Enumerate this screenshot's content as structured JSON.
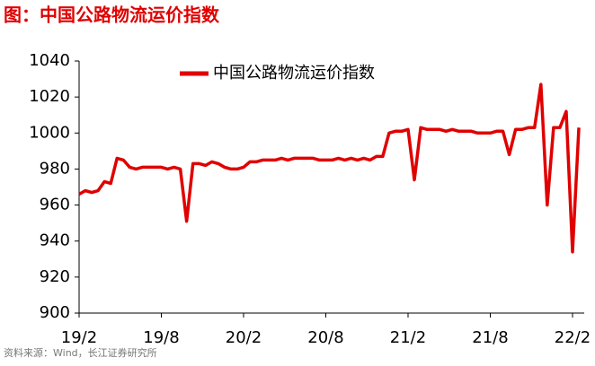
{
  "chart_data": {
    "type": "line",
    "title": "图：中国公路物流运价指数",
    "source": "资料来源：Wind，长江证券研究所",
    "categories": [
      "19/2",
      null,
      null,
      null,
      null,
      null,
      null,
      null,
      null,
      null,
      null,
      null,
      null,
      "19/8",
      null,
      null,
      null,
      null,
      null,
      null,
      null,
      null,
      null,
      null,
      null,
      null,
      "20/2",
      null,
      null,
      null,
      null,
      null,
      null,
      null,
      null,
      null,
      null,
      null,
      null,
      "20/8",
      null,
      null,
      null,
      null,
      null,
      null,
      null,
      null,
      null,
      null,
      null,
      null,
      "21/2",
      null,
      null,
      null,
      null,
      null,
      null,
      null,
      null,
      null,
      null,
      null,
      null,
      "21/8",
      null,
      null,
      null,
      null,
      null,
      null,
      null,
      null,
      null,
      null,
      null,
      null,
      "22/2",
      null
    ],
    "series": [
      {
        "name": "中国公路物流运价指数",
        "color": "#e00000",
        "values": [
          966,
          968,
          967,
          968,
          973,
          972,
          986,
          985,
          981,
          980,
          981,
          981,
          981,
          981,
          980,
          981,
          980,
          951,
          983,
          983,
          982,
          984,
          983,
          981,
          980,
          980,
          981,
          984,
          984,
          985,
          985,
          985,
          986,
          985,
          986,
          986,
          986,
          986,
          985,
          985,
          985,
          986,
          985,
          986,
          985,
          986,
          985,
          987,
          987,
          1000,
          1001,
          1001,
          1002,
          974,
          1003,
          1002,
          1002,
          1002,
          1001,
          1002,
          1001,
          1001,
          1001,
          1000,
          1000,
          1000,
          1001,
          1001,
          988,
          1002,
          1002,
          1003,
          1003,
          1027,
          960,
          1003,
          1003,
          1012,
          934,
          1003
        ]
      }
    ],
    "ylim": [
      900,
      1040
    ],
    "yticks": [
      900,
      920,
      940,
      960,
      980,
      1000,
      1020,
      1040
    ],
    "grid": false
  }
}
